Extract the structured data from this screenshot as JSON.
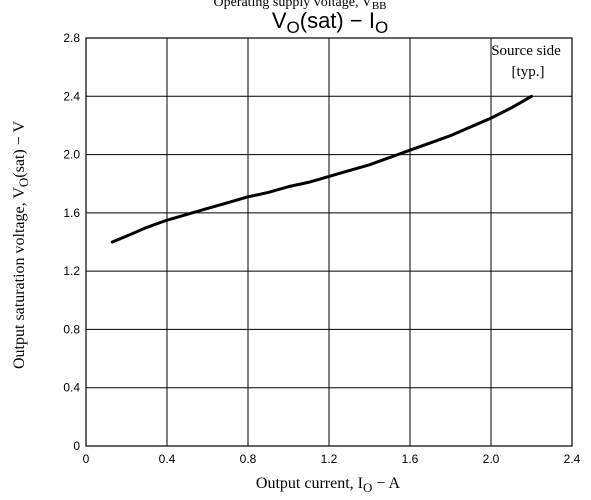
{
  "header": {
    "cut_text": "Operating supply voltage, V",
    "cut_text_sub": "BB"
  },
  "chart_data": {
    "type": "line",
    "title_main": "V",
    "title_sub": "O",
    "title_rest": "(sat) − I",
    "title_sub2": "O",
    "xlabel_main": "Output current, I",
    "xlabel_sub": "O",
    "xlabel_rest": " − A",
    "ylabel_main": "Output saturation voltage, V",
    "ylabel_sub": "O",
    "ylabel_rest": "(sat) − V",
    "xlim": [
      0,
      2.4
    ],
    "ylim": [
      0,
      2.8
    ],
    "x_ticks": [
      "0",
      "0.4",
      "0.8",
      "1.2",
      "1.6",
      "2.0",
      "2.4"
    ],
    "y_ticks": [
      "0",
      "0.4",
      "0.8",
      "1.2",
      "1.6",
      "2.0",
      "2.4",
      "2.8"
    ],
    "grid": true,
    "annotation_line1": "Source side",
    "annotation_line2": "[typ.]",
    "series": [
      {
        "x": [
          0.13,
          0.2,
          0.3,
          0.4,
          0.5,
          0.6,
          0.7,
          0.8,
          0.9,
          1.0,
          1.1,
          1.2,
          1.3,
          1.4,
          1.5,
          1.6,
          1.7,
          1.8,
          1.9,
          2.0,
          2.1,
          2.2
        ],
        "y": [
          1.4,
          1.44,
          1.5,
          1.55,
          1.59,
          1.63,
          1.67,
          1.71,
          1.74,
          1.78,
          1.81,
          1.85,
          1.89,
          1.93,
          1.98,
          2.03,
          2.08,
          2.13,
          2.19,
          2.25,
          2.32,
          2.4
        ]
      }
    ]
  }
}
